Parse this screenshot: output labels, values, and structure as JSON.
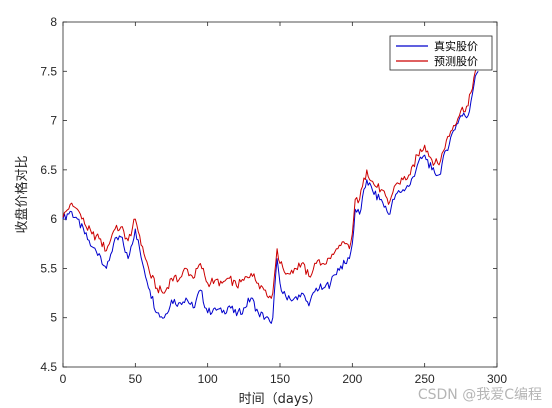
{
  "watermark": "CSDN @我爱C编程",
  "chart_data": {
    "type": "line",
    "xlabel": "时间（days）",
    "ylabel": "收盘价格对比",
    "xlim": [
      0,
      300
    ],
    "ylim": [
      4.5,
      8
    ],
    "x_ticks": [
      0,
      50,
      100,
      150,
      200,
      250,
      300
    ],
    "y_ticks": [
      4.5,
      5,
      5.5,
      6,
      6.5,
      7,
      7.5,
      8
    ],
    "x_tick_labels": [
      "0",
      "50",
      "100",
      "150",
      "200",
      "250",
      "300"
    ],
    "y_tick_labels": [
      "4.5",
      "5",
      "5.5",
      "6",
      "6.5",
      "7",
      "7.5",
      "8"
    ],
    "grid": false,
    "legend_position": "top-right",
    "series": [
      {
        "name": "真实股价",
        "color": "#0000cc",
        "x": [
          0,
          5,
          10,
          15,
          20,
          25,
          30,
          35,
          40,
          45,
          50,
          55,
          60,
          65,
          70,
          75,
          80,
          85,
          90,
          95,
          100,
          105,
          110,
          115,
          120,
          125,
          130,
          135,
          140,
          143,
          145,
          148,
          150,
          155,
          160,
          165,
          170,
          175,
          180,
          185,
          190,
          195,
          198,
          200,
          202,
          205,
          210,
          215,
          220,
          225,
          230,
          235,
          240,
          245,
          250,
          255,
          260,
          265,
          270,
          275,
          280,
          285,
          287
        ],
        "values": [
          6.0,
          6.08,
          6.0,
          5.85,
          5.72,
          5.65,
          5.5,
          5.75,
          5.82,
          5.6,
          5.9,
          5.55,
          5.28,
          5.05,
          5.0,
          5.18,
          5.15,
          5.2,
          5.1,
          5.28,
          5.05,
          5.1,
          5.05,
          5.12,
          5.02,
          5.1,
          5.2,
          5.05,
          5.0,
          4.96,
          5.0,
          5.6,
          5.35,
          5.18,
          5.2,
          5.25,
          5.12,
          5.3,
          5.3,
          5.35,
          5.5,
          5.55,
          5.6,
          5.75,
          6.1,
          6.05,
          6.4,
          6.25,
          6.2,
          6.05,
          6.25,
          6.3,
          6.35,
          6.55,
          6.65,
          6.5,
          6.45,
          6.7,
          6.9,
          7.05,
          7.05,
          7.45,
          7.5
        ]
      },
      {
        "name": "预测股价",
        "color": "#cc0000",
        "x": [
          0,
          5,
          10,
          15,
          20,
          25,
          30,
          35,
          40,
          45,
          50,
          55,
          60,
          65,
          70,
          75,
          80,
          85,
          90,
          95,
          100,
          105,
          110,
          115,
          120,
          125,
          130,
          135,
          140,
          143,
          145,
          148,
          150,
          155,
          160,
          165,
          170,
          175,
          180,
          185,
          190,
          195,
          198,
          200,
          202,
          205,
          210,
          215,
          220,
          225,
          230,
          235,
          240,
          245,
          250,
          255,
          260,
          265,
          270,
          275,
          280,
          285,
          287
        ],
        "values": [
          6.02,
          6.15,
          6.1,
          5.95,
          5.85,
          5.8,
          5.68,
          5.88,
          5.92,
          5.78,
          6.0,
          5.72,
          5.45,
          5.3,
          5.25,
          5.4,
          5.38,
          5.5,
          5.4,
          5.55,
          5.35,
          5.38,
          5.35,
          5.4,
          5.32,
          5.38,
          5.45,
          5.35,
          5.28,
          5.22,
          5.25,
          5.7,
          5.55,
          5.45,
          5.5,
          5.55,
          5.42,
          5.55,
          5.55,
          5.6,
          5.7,
          5.75,
          5.7,
          5.85,
          6.2,
          6.2,
          6.5,
          6.35,
          6.3,
          6.15,
          6.35,
          6.4,
          6.45,
          6.65,
          6.75,
          6.6,
          6.55,
          6.8,
          6.95,
          7.1,
          7.15,
          7.5,
          7.55
        ]
      }
    ]
  }
}
